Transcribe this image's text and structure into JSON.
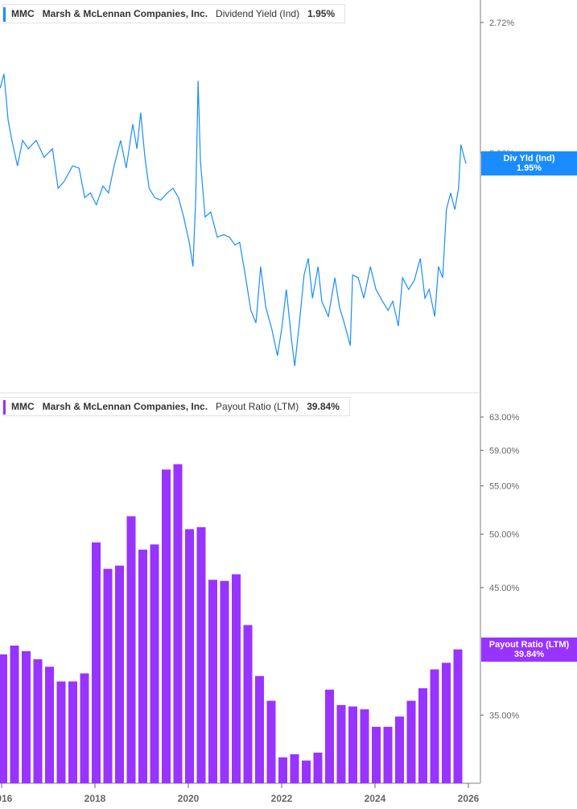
{
  "colors": {
    "yield": "#1a8cff",
    "payout": "#9933ff",
    "axis": "#aaaaaa",
    "tick_text": "#666666"
  },
  "top_legend": {
    "ticker": "MMC",
    "company": "Marsh & McLennan Companies, Inc.",
    "metric": "Dividend Yield (Ind)",
    "value": "1.95%"
  },
  "bottom_legend": {
    "ticker": "MMC",
    "company": "Marsh & McLennan Companies, Inc.",
    "metric": "Payout Ratio (LTM)",
    "value": "39.84%"
  },
  "top_label": {
    "name": "Div Yld (Ind)",
    "value": "1.95%"
  },
  "bottom_label": {
    "name": "Payout Ratio (LTM)",
    "value": "39.84%"
  },
  "chart_data": [
    {
      "type": "line",
      "scale": "log",
      "series": [
        {
          "name": "Dividend Yield (Ind)",
          "unit": "%",
          "x": [
            2015.97,
            2016.05,
            2016.14,
            2016.22,
            2016.34,
            2016.45,
            2016.57,
            2016.74,
            2016.91,
            2017.09,
            2017.21,
            2017.34,
            2017.52,
            2017.66,
            2017.78,
            2017.9,
            2018.03,
            2018.17,
            2018.29,
            2018.41,
            2018.55,
            2018.67,
            2018.81,
            2018.9,
            2018.98,
            2019.07,
            2019.16,
            2019.28,
            2019.41,
            2019.55,
            2019.67,
            2019.79,
            2019.9,
            2020.02,
            2020.1,
            2020.16,
            2020.21,
            2020.26,
            2020.36,
            2020.48,
            2020.62,
            2020.76,
            2020.88,
            2021.0,
            2021.1,
            2021.22,
            2021.34,
            2021.45,
            2021.55,
            2021.66,
            2021.79,
            2021.91,
            2022.0,
            2022.1,
            2022.21,
            2022.28,
            2022.38,
            2022.48,
            2022.57,
            2022.66,
            2022.78,
            2022.86,
            2023.0,
            2023.14,
            2023.24,
            2023.34,
            2023.47,
            2023.52,
            2023.64,
            2023.76,
            2023.9,
            2024.02,
            2024.16,
            2024.28,
            2024.38,
            2024.5,
            2024.59,
            2024.72,
            2024.84,
            2024.97,
            2025.07,
            2025.16,
            2025.28,
            2025.36,
            2025.45,
            2025.53,
            2025.62,
            2025.71,
            2025.79,
            2025.84,
            2025.91,
            2025.95
          ],
          "y": [
            2.33,
            2.41,
            2.16,
            2.06,
            1.94,
            2.06,
            2.02,
            2.06,
            1.98,
            2.02,
            1.84,
            1.87,
            1.94,
            1.93,
            1.8,
            1.82,
            1.77,
            1.85,
            1.82,
            1.94,
            2.06,
            1.93,
            2.14,
            2.02,
            2.2,
            1.98,
            1.84,
            1.8,
            1.79,
            1.82,
            1.84,
            1.8,
            1.72,
            1.62,
            1.53,
            1.8,
            2.37,
            1.96,
            1.72,
            1.74,
            1.64,
            1.65,
            1.64,
            1.61,
            1.62,
            1.5,
            1.38,
            1.34,
            1.53,
            1.39,
            1.32,
            1.24,
            1.32,
            1.45,
            1.29,
            1.21,
            1.34,
            1.5,
            1.56,
            1.42,
            1.53,
            1.41,
            1.36,
            1.49,
            1.39,
            1.34,
            1.27,
            1.5,
            1.49,
            1.42,
            1.53,
            1.45,
            1.41,
            1.38,
            1.41,
            1.33,
            1.49,
            1.45,
            1.48,
            1.56,
            1.42,
            1.45,
            1.36,
            1.53,
            1.49,
            1.75,
            1.82,
            1.75,
            1.84,
            2.04,
            1.98,
            1.95
          ]
        }
      ],
      "yticks": [
        "2.72%",
        "2.00%"
      ],
      "ytick_values": [
        2.72,
        2.0
      ]
    },
    {
      "type": "bar",
      "scale": "log",
      "series": [
        {
          "name": "Payout Ratio (LTM)",
          "unit": "%",
          "x": [
            2016.0,
            2016.25,
            2016.5,
            2016.75,
            2017.0,
            2017.25,
            2017.5,
            2017.75,
            2018.0,
            2018.25,
            2018.5,
            2018.75,
            2019.0,
            2019.25,
            2019.5,
            2019.75,
            2020.0,
            2020.25,
            2020.5,
            2020.75,
            2021.0,
            2021.25,
            2021.5,
            2021.75,
            2022.0,
            2022.25,
            2022.5,
            2022.75,
            2023.0,
            2023.25,
            2023.5,
            2023.75,
            2024.0,
            2024.25,
            2024.5,
            2024.75,
            2025.0,
            2025.25,
            2025.5,
            2025.75
          ],
          "values": [
            39.45,
            40.14,
            39.7,
            39.07,
            38.5,
            37.4,
            37.4,
            38.0,
            49.2,
            46.7,
            47.0,
            51.8,
            48.5,
            49.0,
            56.8,
            57.4,
            50.5,
            50.7,
            45.7,
            45.6,
            46.2,
            41.8,
            37.8,
            36.0,
            32.2,
            32.4,
            32.0,
            32.5,
            36.8,
            35.7,
            35.6,
            35.4,
            34.2,
            34.2,
            34.9,
            36.0,
            36.9,
            38.3,
            38.8,
            39.84
          ]
        }
      ],
      "yticks": [
        "63.00%",
        "59.00%",
        "55.00%",
        "50.00%",
        "45.00%",
        "35.00%"
      ],
      "ytick_values": [
        63,
        59,
        55,
        50,
        45,
        35
      ],
      "xticks": [
        "2016",
        "2018",
        "2020",
        "2022",
        "2024",
        "2026"
      ],
      "xtick_values": [
        2016,
        2018,
        2020,
        2022,
        2024,
        2026
      ]
    }
  ]
}
